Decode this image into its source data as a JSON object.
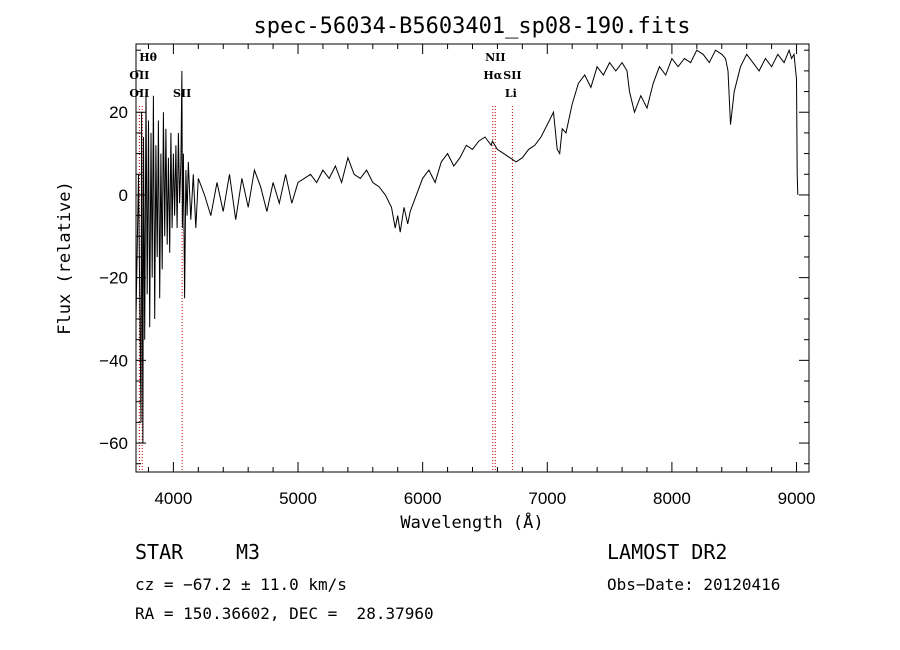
{
  "chart_data": {
    "type": "line",
    "title": "spec-56034-B5603401_sp08-190.fits",
    "xlabel": "Wavelength (Å)",
    "ylabel": "Flux (relative)",
    "xlim": [
      3700,
      9100
    ],
    "ylim": [
      -67,
      36.5
    ],
    "xticks": [
      4000,
      5000,
      6000,
      7000,
      8000,
      9000
    ],
    "yticks": [
      -60,
      -40,
      -20,
      0,
      20
    ],
    "ytick_labels": [
      "−60",
      "−40",
      "−20",
      "0",
      "20"
    ],
    "series": [
      {
        "x": [
          3700,
          3720,
          3740,
          3745,
          3755,
          3760,
          3770,
          3780,
          3790,
          3800,
          3810,
          3820,
          3830,
          3840,
          3850,
          3860,
          3870,
          3880,
          3890,
          3900,
          3910,
          3920,
          3930,
          3940,
          3950,
          3960,
          3970,
          3980,
          3990,
          4000,
          4010,
          4020,
          4030,
          4040,
          4050,
          4060,
          4068,
          4072,
          4080,
          4090,
          4100,
          4110,
          4120,
          4140,
          4160,
          4180,
          4200,
          4250,
          4300,
          4350,
          4400,
          4450,
          4500,
          4550,
          4600,
          4650,
          4700,
          4750,
          4800,
          4850,
          4900,
          4950,
          5000,
          5050,
          5100,
          5150,
          5200,
          5250,
          5300,
          5350,
          5400,
          5450,
          5500,
          5550,
          5600,
          5650,
          5700,
          5750,
          5780,
          5800,
          5820,
          5850,
          5880,
          5900,
          5950,
          6000,
          6050,
          6100,
          6150,
          6200,
          6250,
          6300,
          6350,
          6400,
          6450,
          6500,
          6550,
          6560,
          6600,
          6650,
          6700,
          6750,
          6800,
          6850,
          6900,
          6950,
          7000,
          7050,
          7080,
          7100,
          7120,
          7150,
          7200,
          7250,
          7300,
          7350,
          7400,
          7450,
          7500,
          7550,
          7600,
          7640,
          7660,
          7700,
          7750,
          7800,
          7850,
          7900,
          7950,
          8000,
          8050,
          8100,
          8150,
          8200,
          8250,
          8300,
          8350,
          8400,
          8430,
          8450,
          8470,
          8500,
          8550,
          8600,
          8650,
          8700,
          8750,
          8800,
          8850,
          8900,
          8940,
          8960,
          8980,
          9000,
          9005,
          9010
        ],
        "y": [
          -30,
          5,
          -55,
          20,
          -60,
          14,
          -35,
          25,
          -24,
          18,
          -32,
          15,
          -20,
          24,
          -30,
          12,
          -15,
          18,
          -25,
          10,
          -18,
          20,
          -10,
          16,
          -12,
          9,
          -14,
          15,
          -8,
          10,
          -5,
          12,
          -8,
          15,
          -2,
          8,
          30,
          -8,
          10,
          -25,
          6,
          -5,
          8,
          -6,
          5,
          -8,
          4,
          0,
          -5,
          3,
          -4,
          5,
          -6,
          4,
          -3,
          6,
          2,
          -4,
          3,
          -2,
          5,
          -2,
          3,
          4,
          5,
          3,
          6,
          4,
          7,
          3,
          9,
          5,
          4,
          6,
          3,
          2,
          0,
          -3,
          -8,
          -5,
          -9,
          -3,
          -7,
          -4,
          0,
          4,
          6,
          3,
          8,
          10,
          7,
          9,
          12,
          11,
          13,
          14,
          12,
          13,
          11,
          10,
          9,
          8,
          9,
          11,
          12,
          14,
          17,
          20,
          11,
          10,
          16,
          15,
          22,
          27,
          29,
          26,
          31,
          29,
          32,
          30,
          32,
          30,
          25,
          20,
          24,
          21,
          27,
          31,
          29,
          33,
          31,
          33,
          32,
          35,
          34,
          32,
          35,
          34,
          33,
          30,
          17,
          25,
          31,
          34,
          32,
          30,
          33,
          31,
          34,
          32,
          35,
          33,
          34,
          28,
          5,
          0
        ]
      }
    ],
    "spectral_lines": [
      {
        "label": "Hθ",
        "x": 3797,
        "row": 0
      },
      {
        "label": "OII",
        "x": 3727,
        "row": 1
      },
      {
        "label": "OII",
        "x": 3727,
        "row": 2
      },
      {
        "label": "SII",
        "x": 4070,
        "row": 2
      },
      {
        "label": "NII",
        "x": 6583,
        "row": 0
      },
      {
        "label": "Hα",
        "x": 6563,
        "row": 1
      },
      {
        "label": "SII",
        "x": 6720,
        "row": 1
      },
      {
        "label": "Li",
        "x": 6708,
        "row": 2
      }
    ],
    "marker_lines": [
      3727,
      3750,
      4070,
      6563,
      6583,
      6720
    ],
    "grid": false,
    "colors": {
      "line": "#000000",
      "marker": "#cc0000"
    }
  },
  "footer": {
    "object_type": "STAR",
    "subclass": "M3",
    "survey": "LAMOST DR2",
    "velocity": "cz = −67.2 ± 11.0 km/s",
    "obs_date": "Obs−Date: 20120416",
    "coords": "RA = 150.36602, DEC =  28.37960"
  }
}
